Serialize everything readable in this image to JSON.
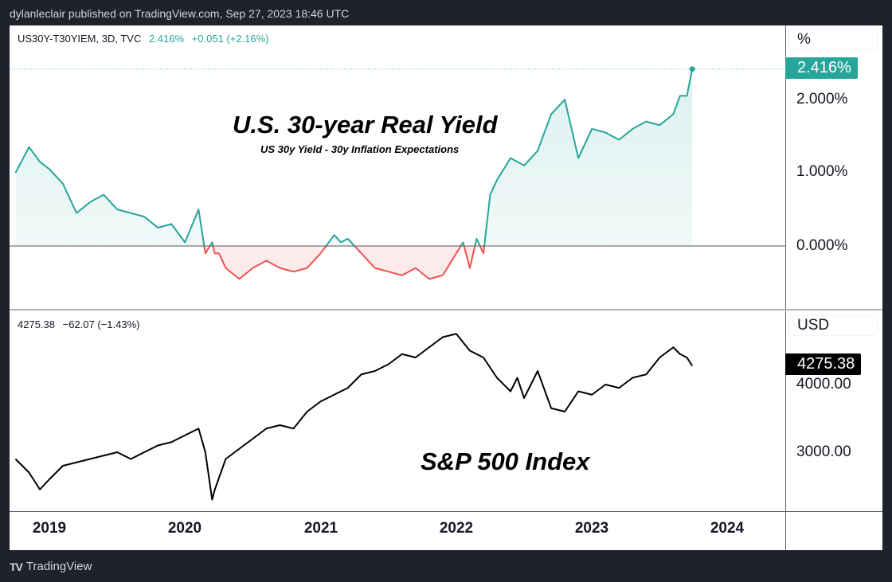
{
  "publisher_line": "dylanleclair published on TradingView.com, Sep 27, 2023 18:46 UTC",
  "brand": {
    "logo_text": "TV",
    "name": "TradingView"
  },
  "colors": {
    "positive": "#26a69a",
    "negative": "#ef5350",
    "sp_line": "#000000",
    "background_dark": "#1f222c"
  },
  "top_pane": {
    "symbol": "US30Y-T30YIEM, 3D, TVC",
    "last_value": "2.416%",
    "change": "+0.051 (+2.16%)",
    "unit": "%",
    "price_tag": "2.416%",
    "title": "U.S. 30-year Real Yield",
    "subtitle": "US 30y Yield - 30y Inflation Expectations",
    "ticks": [
      "2.000%",
      "1.000%",
      "0.000%"
    ]
  },
  "bottom_pane": {
    "last_value": "4275.38",
    "change": "−62.07 (−1.43%)",
    "unit": "USD",
    "price_tag": "4275.38",
    "title": "S&P 500 Index",
    "ticks": [
      "4000.00",
      "3000.00"
    ]
  },
  "time_axis": {
    "labels": [
      "2019",
      "2020",
      "2021",
      "2022",
      "2023",
      "2024"
    ]
  },
  "chart_data": [
    {
      "type": "area",
      "title": "U.S. 30-year Real Yield",
      "subtitle": "US 30y Yield - 30y Inflation Expectations",
      "ylabel": "%",
      "ylim": [
        -0.8,
        2.6
      ],
      "baseline": 0,
      "yticks": [
        0,
        1,
        2
      ],
      "x": [
        2018.75,
        2018.85,
        2018.93,
        2019.0,
        2019.1,
        2019.2,
        2019.3,
        2019.4,
        2019.5,
        2019.6,
        2019.7,
        2019.8,
        2019.9,
        2020.0,
        2020.1,
        2020.15,
        2020.2,
        2020.22,
        2020.25,
        2020.3,
        2020.4,
        2020.5,
        2020.6,
        2020.7,
        2020.8,
        2020.9,
        2021.0,
        2021.1,
        2021.15,
        2021.2,
        2021.3,
        2021.4,
        2021.5,
        2021.6,
        2021.7,
        2021.8,
        2021.9,
        2022.0,
        2022.05,
        2022.1,
        2022.15,
        2022.2,
        2022.25,
        2022.3,
        2022.4,
        2022.5,
        2022.6,
        2022.7,
        2022.8,
        2022.9,
        2023.0,
        2023.1,
        2023.2,
        2023.3,
        2023.4,
        2023.5,
        2023.6,
        2023.65,
        2023.7,
        2023.74
      ],
      "y": [
        1.0,
        1.35,
        1.15,
        1.05,
        0.85,
        0.45,
        0.6,
        0.7,
        0.5,
        0.45,
        0.4,
        0.25,
        0.3,
        0.05,
        0.5,
        -0.1,
        0.05,
        -0.1,
        -0.1,
        -0.3,
        -0.45,
        -0.3,
        -0.2,
        -0.3,
        -0.35,
        -0.3,
        -0.1,
        0.15,
        0.05,
        0.1,
        -0.1,
        -0.3,
        -0.35,
        -0.4,
        -0.3,
        -0.45,
        -0.4,
        -0.1,
        0.05,
        -0.3,
        0.1,
        -0.1,
        0.7,
        0.9,
        1.2,
        1.1,
        1.3,
        1.8,
        2.0,
        1.2,
        1.6,
        1.55,
        1.45,
        1.6,
        1.7,
        1.65,
        1.8,
        2.05,
        2.05,
        2.416
      ],
      "last": 2.416,
      "change": 0.051,
      "change_pct": 2.16
    },
    {
      "type": "line",
      "title": "S&P 500 Index",
      "ylabel": "USD",
      "ylim": [
        2100,
        4900
      ],
      "yticks": [
        3000,
        4000
      ],
      "x": [
        2018.75,
        2018.85,
        2018.93,
        2019.0,
        2019.1,
        2019.2,
        2019.3,
        2019.4,
        2019.5,
        2019.6,
        2019.7,
        2019.8,
        2019.9,
        2020.0,
        2020.1,
        2020.15,
        2020.2,
        2020.22,
        2020.3,
        2020.4,
        2020.5,
        2020.6,
        2020.7,
        2020.8,
        2020.9,
        2021.0,
        2021.1,
        2021.2,
        2021.3,
        2021.4,
        2021.5,
        2021.6,
        2021.7,
        2021.8,
        2021.9,
        2022.0,
        2022.1,
        2022.2,
        2022.3,
        2022.4,
        2022.45,
        2022.5,
        2022.6,
        2022.7,
        2022.8,
        2022.9,
        2023.0,
        2023.1,
        2023.2,
        2023.3,
        2023.4,
        2023.5,
        2023.6,
        2023.65,
        2023.7,
        2023.74
      ],
      "y": [
        2900,
        2700,
        2450,
        2600,
        2800,
        2850,
        2900,
        2950,
        3000,
        2900,
        3000,
        3100,
        3150,
        3250,
        3350,
        3000,
        2300,
        2450,
        2900,
        3050,
        3200,
        3350,
        3400,
        3350,
        3600,
        3750,
        3850,
        3950,
        4150,
        4200,
        4300,
        4450,
        4400,
        4550,
        4700,
        4750,
        4500,
        4400,
        4100,
        3900,
        4100,
        3800,
        4200,
        3650,
        3600,
        3900,
        3850,
        4000,
        3950,
        4100,
        4150,
        4400,
        4550,
        4450,
        4400,
        4275.38
      ],
      "last": 4275.38,
      "change": -62.07,
      "change_pct": -1.43
    }
  ]
}
